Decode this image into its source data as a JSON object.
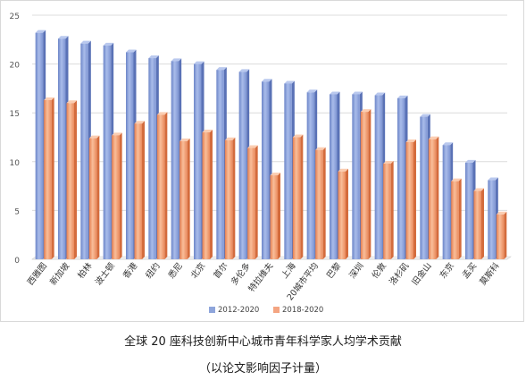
{
  "caption": {
    "title": "全球 20 座科技创新中心城市青年科学家人均学术贡献",
    "subtitle": "（以论文影响因子计量）"
  },
  "chart_data": {
    "type": "bar",
    "categories": [
      "西雅图",
      "新加坡",
      "柏林",
      "波士顿",
      "香港",
      "纽约",
      "悉尼",
      "北京",
      "首尔",
      "多伦多",
      "特拉维夫",
      "上海",
      "20城市平均",
      "巴黎",
      "深圳",
      "伦敦",
      "洛杉矶",
      "旧金山",
      "东京",
      "孟买",
      "莫斯科"
    ],
    "series": [
      {
        "name": "2012-2020",
        "color": "#8ea5db",
        "values": [
          23.2,
          22.6,
          22.1,
          21.9,
          21.2,
          20.6,
          20.3,
          20.0,
          19.4,
          19.2,
          18.2,
          18.0,
          17.1,
          16.9,
          16.9,
          16.8,
          16.5,
          14.6,
          11.7,
          9.9,
          8.1
        ]
      },
      {
        "name": "2018-2020",
        "color": "#f4a582",
        "values": [
          16.3,
          16.0,
          12.4,
          12.7,
          13.9,
          14.8,
          12.1,
          13.0,
          12.2,
          11.4,
          8.6,
          12.5,
          11.2,
          9.0,
          15.1,
          9.8,
          12.0,
          12.3,
          8.0,
          7.0,
          4.6
        ]
      }
    ],
    "yticks": [
      "0",
      "5",
      "10",
      "15",
      "20",
      "25"
    ],
    "ylim": [
      0,
      25
    ],
    "xlabel": "",
    "ylabel": "",
    "legend_position": "bottom",
    "grid": true
  }
}
